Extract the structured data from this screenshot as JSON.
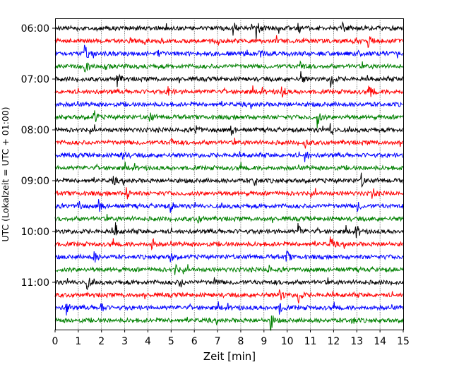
{
  "chart_data": {
    "type": "line",
    "title": "",
    "xlabel": "Zeit  [min]",
    "ylabel": "UTC (Lokalzeit = UTC + 01:00)",
    "xlim": [
      0,
      15
    ],
    "x_ticks": [
      "0",
      "1",
      "2",
      "3",
      "4",
      "5",
      "6",
      "7",
      "8",
      "9",
      "10",
      "11",
      "12",
      "13",
      "14",
      "15"
    ],
    "y_ticks": [
      "06:00",
      "07:00",
      "08:00",
      "09:00",
      "10:00",
      "11:00"
    ],
    "trace_start": "06:00",
    "trace_interval_min": 15,
    "trace_count": 24,
    "color_cycle": [
      "#000000",
      "#ff0000",
      "#0000ff",
      "#008000"
    ],
    "grid": "vertical dotted at each minute",
    "events": [
      {
        "trace": 0,
        "t": 7.7,
        "amp": 0.55
      },
      {
        "trace": 0,
        "t": 8.7,
        "amp": 1.0
      },
      {
        "trace": 0,
        "t": 10.5,
        "amp": 0.5
      },
      {
        "trace": 0,
        "t": 12.4,
        "amp": 0.45
      },
      {
        "trace": 1,
        "t": 13.5,
        "amp": 0.55
      },
      {
        "trace": 2,
        "t": 1.3,
        "amp": 0.6
      },
      {
        "trace": 2,
        "t": 4.5,
        "amp": 0.35
      },
      {
        "trace": 2,
        "t": 8.8,
        "amp": 0.35
      },
      {
        "trace": 3,
        "t": 1.3,
        "amp": 0.55
      },
      {
        "trace": 3,
        "t": 2.2,
        "amp": 0.45
      },
      {
        "trace": 3,
        "t": 10.6,
        "amp": 0.45
      },
      {
        "trace": 4,
        "t": 2.7,
        "amp": 0.55
      },
      {
        "trace": 4,
        "t": 10.6,
        "amp": 0.6
      },
      {
        "trace": 4,
        "t": 11.9,
        "amp": 0.9
      },
      {
        "trace": 5,
        "t": 4.9,
        "amp": 0.55
      },
      {
        "trace": 5,
        "t": 9.8,
        "amp": 0.5
      },
      {
        "trace": 5,
        "t": 13.6,
        "amp": 0.5
      },
      {
        "trace": 7,
        "t": 1.7,
        "amp": 0.55
      },
      {
        "trace": 7,
        "t": 4.1,
        "amp": 0.4
      },
      {
        "trace": 7,
        "t": 11.3,
        "amp": 0.85
      },
      {
        "trace": 8,
        "t": 6.1,
        "amp": 0.45
      },
      {
        "trace": 8,
        "t": 7.6,
        "amp": 0.45
      },
      {
        "trace": 8,
        "t": 11.9,
        "amp": 0.6
      },
      {
        "trace": 9,
        "t": 5.0,
        "amp": 0.4
      },
      {
        "trace": 9,
        "t": 10.8,
        "amp": 0.4
      },
      {
        "trace": 10,
        "t": 2.9,
        "amp": 0.6
      },
      {
        "trace": 10,
        "t": 10.8,
        "amp": 0.45
      },
      {
        "trace": 12,
        "t": 2.5,
        "amp": 0.4
      },
      {
        "trace": 12,
        "t": 8.6,
        "amp": 0.7
      },
      {
        "trace": 12,
        "t": 13.2,
        "amp": 0.55
      },
      {
        "trace": 13,
        "t": 3.1,
        "amp": 0.55
      },
      {
        "trace": 13,
        "t": 13.7,
        "amp": 0.45
      },
      {
        "trace": 14,
        "t": 1.0,
        "amp": 0.6
      },
      {
        "trace": 14,
        "t": 1.9,
        "amp": 0.6
      },
      {
        "trace": 14,
        "t": 5.0,
        "amp": 0.45
      },
      {
        "trace": 14,
        "t": 13.0,
        "amp": 0.5
      },
      {
        "trace": 15,
        "t": 6.2,
        "amp": 0.35
      },
      {
        "trace": 16,
        "t": 2.6,
        "amp": 0.65
      },
      {
        "trace": 16,
        "t": 10.5,
        "amp": 0.6
      },
      {
        "trace": 16,
        "t": 13.0,
        "amp": 0.55
      },
      {
        "trace": 17,
        "t": 4.2,
        "amp": 0.5
      },
      {
        "trace": 17,
        "t": 11.9,
        "amp": 0.55
      },
      {
        "trace": 18,
        "t": 1.7,
        "amp": 0.5
      },
      {
        "trace": 18,
        "t": 5.0,
        "amp": 0.4
      },
      {
        "trace": 18,
        "t": 10.0,
        "amp": 0.5
      },
      {
        "trace": 19,
        "t": 5.2,
        "amp": 0.35
      },
      {
        "trace": 19,
        "t": 9.2,
        "amp": 0.35
      },
      {
        "trace": 20,
        "t": 1.4,
        "amp": 0.55
      },
      {
        "trace": 20,
        "t": 5.4,
        "amp": 0.4
      },
      {
        "trace": 20,
        "t": 6.9,
        "amp": 0.35
      },
      {
        "trace": 21,
        "t": 9.7,
        "amp": 0.55
      },
      {
        "trace": 21,
        "t": 10.5,
        "amp": 0.75
      },
      {
        "trace": 22,
        "t": 0.5,
        "amp": 0.6
      },
      {
        "trace": 22,
        "t": 2.0,
        "amp": 0.45
      },
      {
        "trace": 22,
        "t": 9.7,
        "amp": 0.45
      },
      {
        "trace": 23,
        "t": 9.3,
        "amp": 0.85
      },
      {
        "trace": 23,
        "t": 12.8,
        "amp": 0.4
      }
    ]
  }
}
